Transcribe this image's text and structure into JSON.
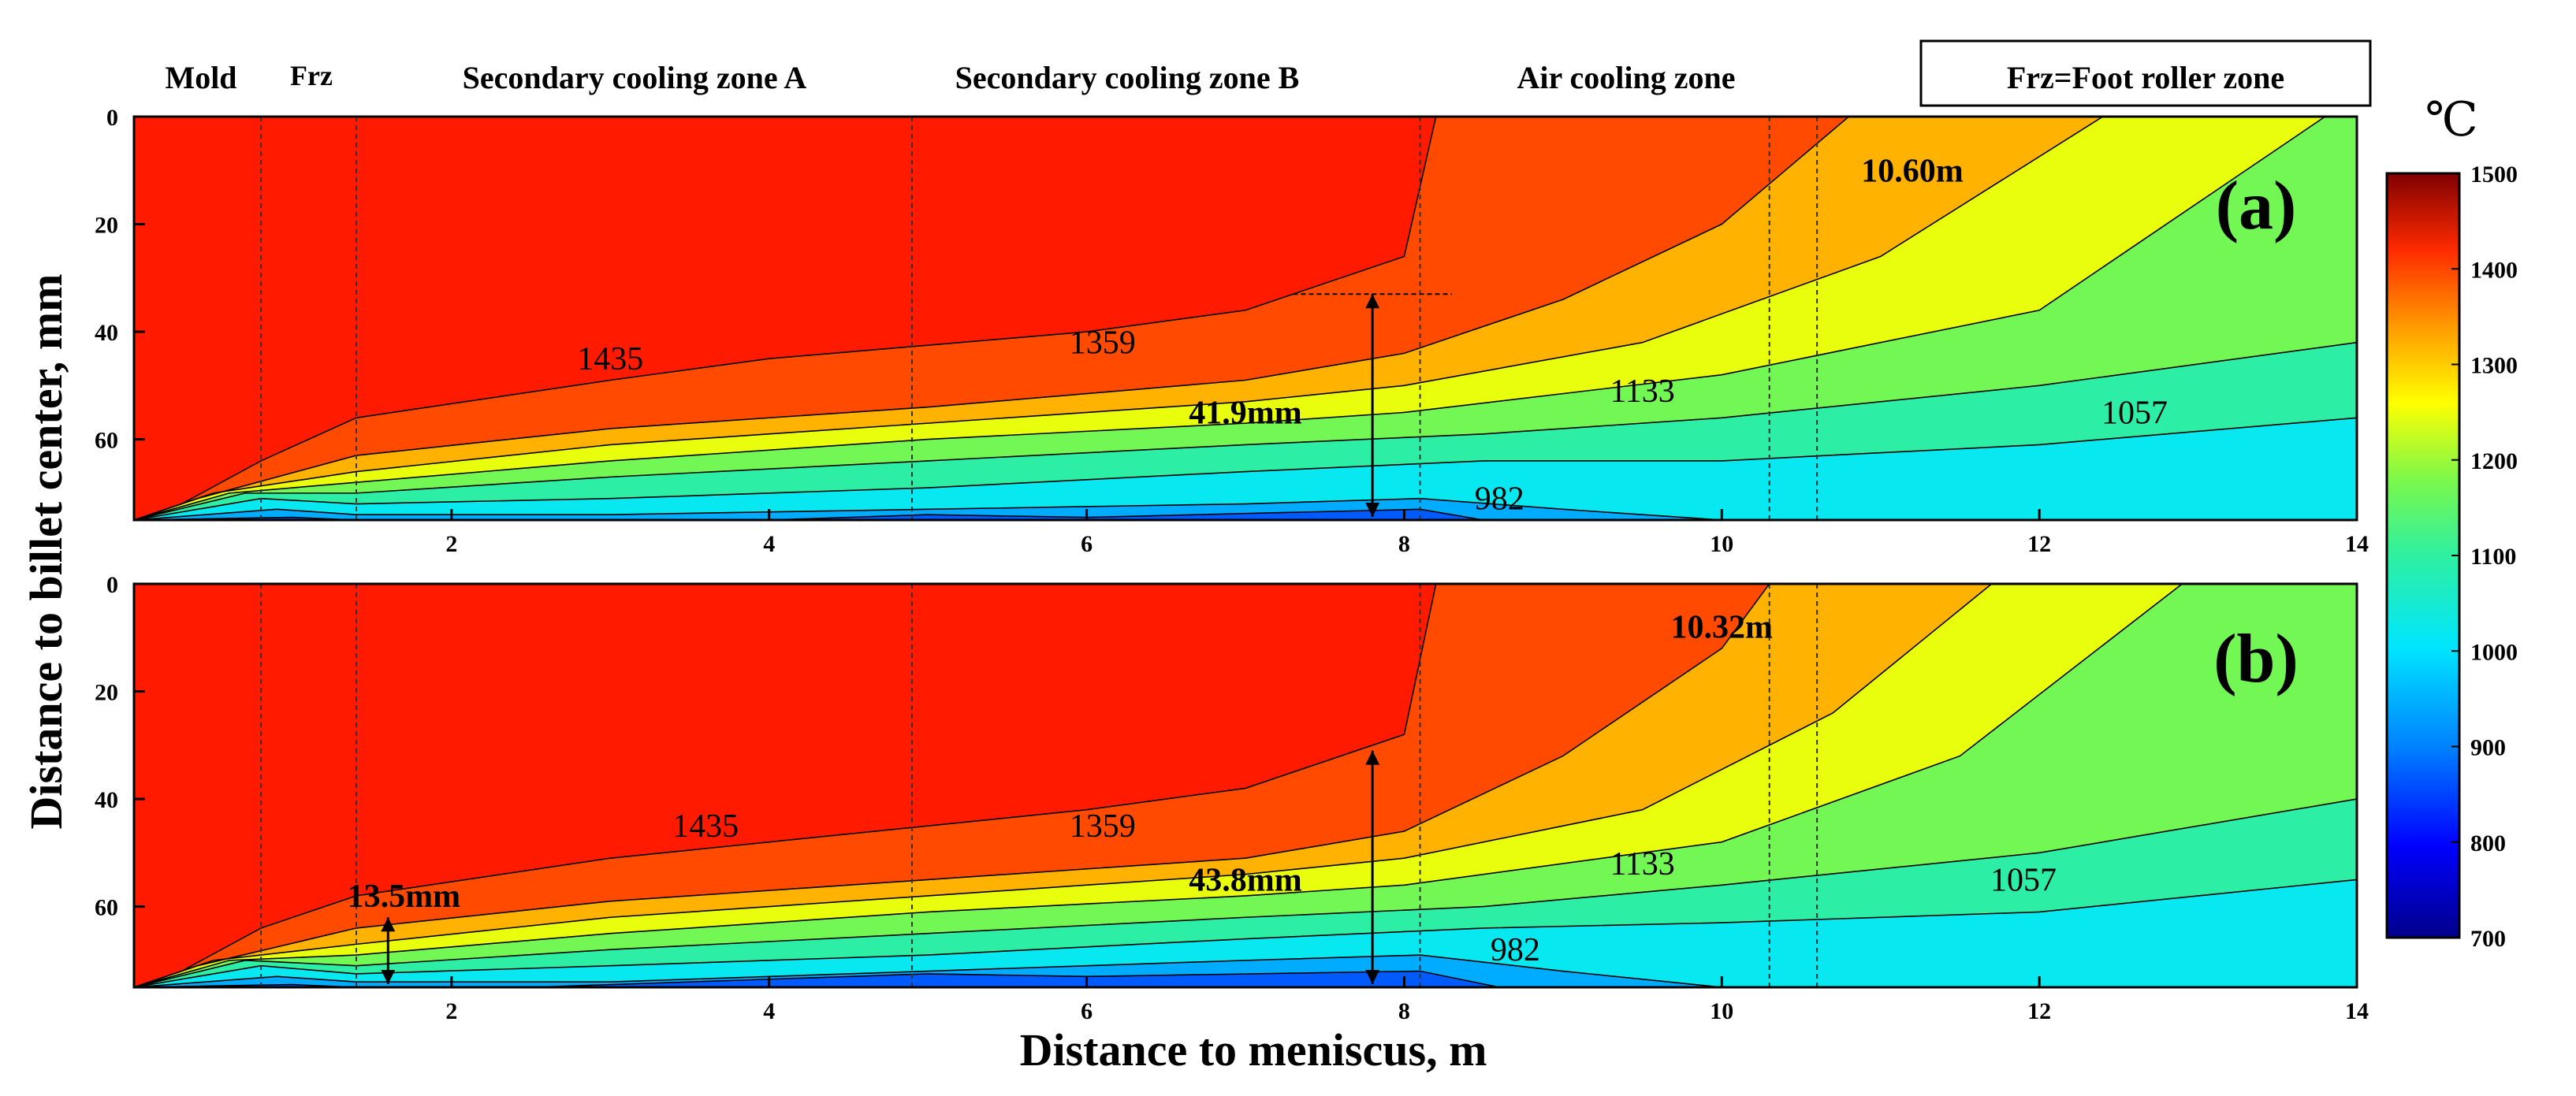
{
  "chart_data": {
    "type": "heatmap",
    "subtype": "filled-contour",
    "title": "",
    "xlabel": "Distance to meniscus, m",
    "ylabel": "Distance to billet center, mm",
    "xlim": [
      0,
      14
    ],
    "ylim": [
      0,
      75
    ],
    "y_inverted": true,
    "x_ticks": [
      "2",
      "4",
      "6",
      "8",
      "10",
      "12",
      "14"
    ],
    "y_ticks": [
      "0",
      "20",
      "40",
      "60"
    ],
    "zones": [
      {
        "label": "Mold",
        "x_start": 0,
        "x_end": 0.8
      },
      {
        "label": "Frz",
        "x_start": 0.8,
        "x_end": 1.4
      },
      {
        "label": "Secondary cooling zone A",
        "x_start": 1.4,
        "x_end": 4.9
      },
      {
        "label": "Secondary cooling zone B",
        "x_start": 4.9,
        "x_end": 8.1
      },
      {
        "label": "Air cooling zone",
        "x_start": 8.1,
        "x_end": 14
      }
    ],
    "legend_note": "Frz=Foot roller zone",
    "colorbar": {
      "unit": "℃",
      "min": 700,
      "max": 1500,
      "ticks": [
        "1500",
        "1400",
        "1300",
        "1200",
        "1100",
        "1000",
        "900",
        "800",
        "700"
      ],
      "placement": "right"
    },
    "contour_levels": [
      907,
      982,
      1057,
      1133,
      1208,
      1284,
      1359,
      1435
    ],
    "panels": [
      {
        "label": "(a)",
        "isolines": [
          {
            "level": 1435,
            "points": [
              [
                0,
                75
              ],
              [
                0.3,
                72
              ],
              [
                0.8,
                64
              ],
              [
                1.4,
                56
              ],
              [
                3,
                49
              ],
              [
                4,
                45
              ],
              [
                6,
                40
              ],
              [
                7,
                36
              ],
              [
                8,
                26
              ],
              [
                8.2,
                0
              ]
            ]
          },
          {
            "level": 1359,
            "points": [
              [
                0,
                75
              ],
              [
                0.4,
                71
              ],
              [
                1.4,
                63
              ],
              [
                3,
                58
              ],
              [
                5,
                54
              ],
              [
                7,
                49
              ],
              [
                8,
                44
              ],
              [
                9,
                34
              ],
              [
                10,
                20
              ],
              [
                10.8,
                0
              ]
            ]
          },
          {
            "level": 1284,
            "points": [
              [
                0,
                75
              ],
              [
                0.5,
                70
              ],
              [
                1.4,
                66
              ],
              [
                3,
                61
              ],
              [
                5,
                57
              ],
              [
                7,
                53
              ],
              [
                8,
                50
              ],
              [
                9.5,
                42
              ],
              [
                11,
                26
              ],
              [
                12.4,
                0
              ]
            ]
          },
          {
            "level": 1208,
            "points": [
              [
                0,
                75
              ],
              [
                0.6,
                70
              ],
              [
                1.4,
                68
              ],
              [
                3,
                64
              ],
              [
                5,
                60
              ],
              [
                7,
                57
              ],
              [
                8,
                55
              ],
              [
                10,
                48
              ],
              [
                12,
                36
              ],
              [
                13.8,
                0
              ]
            ]
          },
          {
            "level": 1133,
            "points": [
              [
                0,
                75
              ],
              [
                0.7,
                70
              ],
              [
                1.4,
                70
              ],
              [
                3,
                67
              ],
              [
                5,
                64
              ],
              [
                7,
                61
              ],
              [
                8.5,
                59
              ],
              [
                10,
                56
              ],
              [
                12,
                50
              ],
              [
                14,
                42
              ]
            ]
          },
          {
            "level": 1057,
            "points": [
              [
                0,
                75
              ],
              [
                0.8,
                71
              ],
              [
                1.4,
                72
              ],
              [
                3,
                71
              ],
              [
                5,
                69
              ],
              [
                7,
                66
              ],
              [
                8.5,
                64
              ],
              [
                10,
                64
              ],
              [
                12,
                61
              ],
              [
                14,
                56
              ]
            ]
          },
          {
            "level": 982,
            "points": [
              [
                0,
                75
              ],
              [
                0.9,
                73
              ],
              [
                1.4,
                74
              ],
              [
                3,
                74
              ],
              [
                5,
                73
              ],
              [
                7,
                72
              ],
              [
                8.1,
                71
              ],
              [
                9,
                73
              ],
              [
                10,
                75
              ],
              [
                12,
                75
              ],
              [
                14,
                75
              ]
            ]
          },
          {
            "level": 907,
            "points": [
              [
                0,
                75
              ],
              [
                1.0,
                74.5
              ],
              [
                1.4,
                75
              ],
              [
                2,
                75
              ],
              [
                4,
                75
              ],
              [
                5,
                74
              ],
              [
                6,
                74.5
              ],
              [
                8.1,
                73
              ],
              [
                8.5,
                75
              ],
              [
                14,
                75
              ]
            ]
          }
        ],
        "isoline_labels": [
          {
            "text": "1435",
            "x": 3.0,
            "y": 45
          },
          {
            "text": "1359",
            "x": 6.1,
            "y": 42
          },
          {
            "text": "1133",
            "x": 9.5,
            "y": 51
          },
          {
            "text": "1057",
            "x": 12.6,
            "y": 55
          },
          {
            "text": "982",
            "x": 8.6,
            "y": 71
          }
        ],
        "annotations": [
          {
            "text": "41.9mm",
            "x": 7.0,
            "y": 55
          },
          {
            "text": "10.60m",
            "x": 11.2,
            "y": 10
          }
        ],
        "markers": [
          {
            "type": "double-arrow",
            "x": 7.8,
            "y_from": 33,
            "y_to": 75
          },
          {
            "type": "dashed-line",
            "x_from": 7.3,
            "x_to": 8.3,
            "y": 33
          },
          {
            "type": "dashed-vline",
            "x": 10.3
          },
          {
            "type": "dashed-vline",
            "x": 10.6
          }
        ]
      },
      {
        "label": "(b)",
        "isolines": [
          {
            "level": 1435,
            "points": [
              [
                0,
                75
              ],
              [
                0.3,
                72
              ],
              [
                0.8,
                64
              ],
              [
                1.4,
                58
              ],
              [
                3,
                51
              ],
              [
                4,
                48
              ],
              [
                6,
                42
              ],
              [
                7,
                38
              ],
              [
                8,
                28
              ],
              [
                8.2,
                0
              ]
            ]
          },
          {
            "level": 1359,
            "points": [
              [
                0,
                75
              ],
              [
                0.4,
                71
              ],
              [
                1.4,
                64
              ],
              [
                3,
                59
              ],
              [
                5,
                55
              ],
              [
                7,
                51
              ],
              [
                8,
                46
              ],
              [
                9,
                32
              ],
              [
                10,
                12
              ],
              [
                10.3,
                0
              ]
            ]
          },
          {
            "level": 1284,
            "points": [
              [
                0,
                75
              ],
              [
                0.5,
                70
              ],
              [
                1.4,
                67
              ],
              [
                3,
                62
              ],
              [
                5,
                58
              ],
              [
                7,
                54
              ],
              [
                8,
                51
              ],
              [
                9.5,
                42
              ],
              [
                10.7,
                24
              ],
              [
                11.7,
                0
              ]
            ]
          },
          {
            "level": 1208,
            "points": [
              [
                0,
                75
              ],
              [
                0.6,
                70
              ],
              [
                1.4,
                69
              ],
              [
                3,
                65
              ],
              [
                5,
                61
              ],
              [
                7,
                58
              ],
              [
                8,
                56
              ],
              [
                10,
                48
              ],
              [
                11.5,
                32
              ],
              [
                12.9,
                0
              ]
            ]
          },
          {
            "level": 1133,
            "points": [
              [
                0,
                75
              ],
              [
                0.7,
                70
              ],
              [
                1.4,
                71
              ],
              [
                3,
                68
              ],
              [
                5,
                65
              ],
              [
                7,
                62
              ],
              [
                8.5,
                60
              ],
              [
                10,
                56
              ],
              [
                12,
                50
              ],
              [
                14,
                40
              ]
            ]
          },
          {
            "level": 1057,
            "points": [
              [
                0,
                75
              ],
              [
                0.8,
                71
              ],
              [
                1.4,
                72.5
              ],
              [
                3,
                71
              ],
              [
                5,
                69
              ],
              [
                7,
                66
              ],
              [
                8.5,
                64
              ],
              [
                10,
                63
              ],
              [
                12,
                61
              ],
              [
                14,
                55
              ]
            ]
          },
          {
            "level": 982,
            "points": [
              [
                0,
                75
              ],
              [
                0.9,
                73
              ],
              [
                1.4,
                74
              ],
              [
                3,
                74
              ],
              [
                5,
                72
              ],
              [
                7,
                70
              ],
              [
                8.1,
                69
              ],
              [
                9,
                72
              ],
              [
                10,
                75
              ],
              [
                12,
                75
              ],
              [
                14,
                75
              ]
            ]
          },
          {
            "level": 907,
            "points": [
              [
                0,
                75
              ],
              [
                1.0,
                74.5
              ],
              [
                1.4,
                75
              ],
              [
                2.5,
                75
              ],
              [
                4,
                73.5
              ],
              [
                5,
                72.5
              ],
              [
                6,
                73
              ],
              [
                8.1,
                72
              ],
              [
                8.6,
                75
              ],
              [
                14,
                75
              ]
            ]
          }
        ],
        "isoline_labels": [
          {
            "text": "1435",
            "x": 3.6,
            "y": 45
          },
          {
            "text": "1359",
            "x": 6.1,
            "y": 45
          },
          {
            "text": "1133",
            "x": 9.5,
            "y": 52
          },
          {
            "text": "1057",
            "x": 11.9,
            "y": 55
          },
          {
            "text": "982",
            "x": 8.7,
            "y": 68
          }
        ],
        "annotations": [
          {
            "text": "13.5mm",
            "x": 1.7,
            "y": 58
          },
          {
            "text": "43.8mm",
            "x": 7.0,
            "y": 55
          },
          {
            "text": "10.32m",
            "x": 10.0,
            "y": 8
          }
        ],
        "markers": [
          {
            "type": "double-arrow",
            "x": 1.6,
            "y_from": 62,
            "y_to": 75
          },
          {
            "type": "double-arrow",
            "x": 7.8,
            "y_from": 31,
            "y_to": 75
          },
          {
            "type": "dashed-vline",
            "x": 10.3
          },
          {
            "type": "dashed-vline",
            "x": 10.6
          }
        ]
      }
    ]
  }
}
